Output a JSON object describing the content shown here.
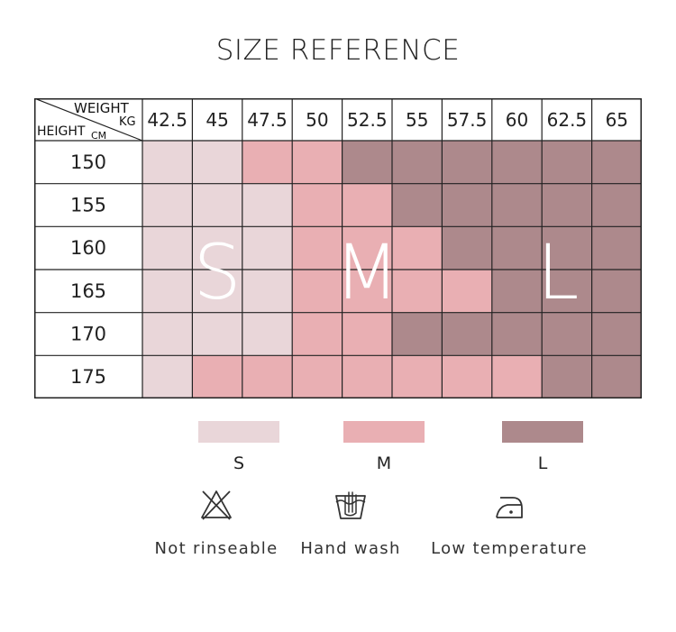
{
  "title": "SIZE REFERENCE",
  "table": {
    "corner": {
      "weight_label": "WEIGHT",
      "weight_unit": "KG",
      "height_label": "HEIGHT",
      "height_unit": "CM"
    },
    "weights": [
      "42.5",
      "45",
      "47.5",
      "50",
      "52.5",
      "55",
      "57.5",
      "60",
      "62.5",
      "65"
    ],
    "heights": [
      "150",
      "155",
      "160",
      "165",
      "170",
      "175"
    ],
    "grid": [
      [
        "S",
        "S",
        "M",
        "M",
        "L",
        "L",
        "L",
        "L",
        "L",
        "L"
      ],
      [
        "S",
        "S",
        "S",
        "M",
        "M",
        "L",
        "L",
        "L",
        "L",
        "L"
      ],
      [
        "S",
        "S",
        "S",
        "M",
        "M",
        "M",
        "L",
        "L",
        "L",
        "L"
      ],
      [
        "S",
        "S",
        "S",
        "M",
        "M",
        "M",
        "M",
        "L",
        "L",
        "L"
      ],
      [
        "S",
        "S",
        "S",
        "M",
        "M",
        "L",
        "L",
        "L",
        "L",
        "L"
      ],
      [
        "S",
        "M",
        "M",
        "M",
        "M",
        "M",
        "M",
        "M",
        "L",
        "L"
      ]
    ],
    "big_letters": [
      "S",
      "M",
      "L"
    ]
  },
  "colors": {
    "S": "#e9d6d9",
    "M": "#e9afb3",
    "L": "#ad898c",
    "border": "#222222"
  },
  "legend": [
    {
      "size": "S",
      "label": "S"
    },
    {
      "size": "M",
      "label": "M"
    },
    {
      "size": "L",
      "label": "L"
    }
  ],
  "care": [
    {
      "icon": "not-rinseable-icon",
      "label": "Not rinseable"
    },
    {
      "icon": "hand-wash-icon",
      "label": "Hand wash"
    },
    {
      "icon": "low-temperature-iron-icon",
      "label": "Low temperature"
    }
  ]
}
